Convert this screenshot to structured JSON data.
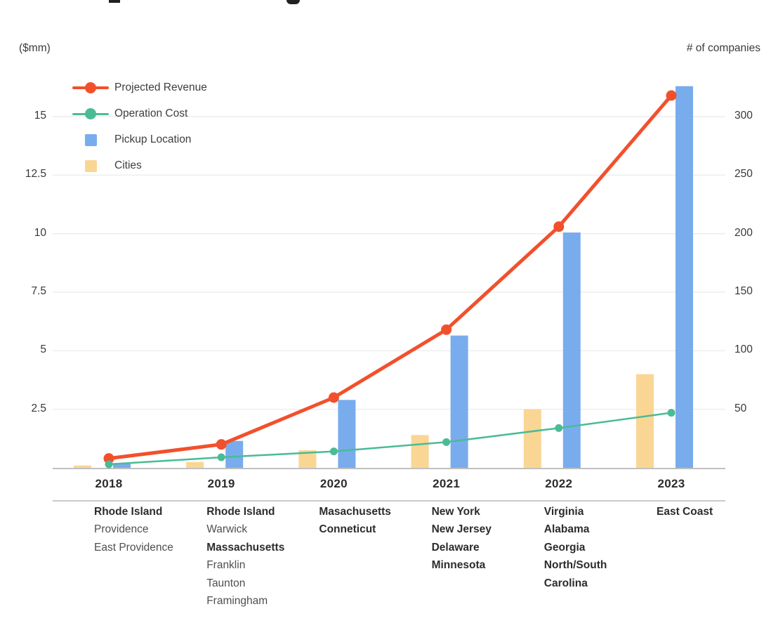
{
  "axes": {
    "left_unit_label": "($mm)",
    "right_unit_label": "# of companies",
    "left_ticks": [
      {
        "value": 2.5,
        "label": "2.5"
      },
      {
        "value": 5,
        "label": "5"
      },
      {
        "value": 7.5,
        "label": "7.5"
      },
      {
        "value": 10,
        "label": "10"
      },
      {
        "value": 12.5,
        "label": "12.5"
      },
      {
        "value": 15,
        "label": "15"
      }
    ],
    "right_ticks": [
      {
        "value": 50,
        "label": "50"
      },
      {
        "value": 100,
        "label": "100"
      },
      {
        "value": 150,
        "label": "150"
      },
      {
        "value": 200,
        "label": "200"
      },
      {
        "value": 250,
        "label": "250"
      },
      {
        "value": 300,
        "label": "300"
      }
    ]
  },
  "chart_data": {
    "type": "combo-bar-line",
    "categories": [
      "2018",
      "2019",
      "2020",
      "2021",
      "2022",
      "2023"
    ],
    "left_axis": {
      "label": "($mm)",
      "ticks": [
        2.5,
        5,
        7.5,
        10,
        12.5,
        15
      ],
      "ylim": [
        0,
        15
      ]
    },
    "right_axis": {
      "label": "# of companies",
      "ticks": [
        50,
        100,
        150,
        200,
        250,
        300
      ],
      "ylim": [
        0,
        300
      ]
    },
    "grid": "horizontal",
    "legend_position": "top-left",
    "series": [
      {
        "name": "Projected Revenue",
        "type": "line",
        "axis": "left",
        "color": "#F2502C",
        "values": [
          0.4,
          1.0,
          3.0,
          5.9,
          10.3,
          15.9
        ]
      },
      {
        "name": "Operation Cost",
        "type": "line",
        "axis": "left",
        "color": "#4ABB97",
        "values": [
          0.15,
          0.45,
          0.7,
          1.1,
          1.7,
          2.35
        ]
      },
      {
        "name": "Pickup Location",
        "type": "bar",
        "axis": "right",
        "color": "#79ACEC",
        "values": [
          4,
          23,
          58,
          113,
          201,
          326
        ]
      },
      {
        "name": "Cities",
        "type": "bar",
        "axis": "right",
        "color": "#FAD694",
        "values": [
          2,
          5,
          15,
          28,
          50,
          80
        ]
      }
    ]
  },
  "legend": {
    "items": [
      {
        "label": "Projected Revenue",
        "marker": "line-dot",
        "color": "#F2502C"
      },
      {
        "label": "Operation Cost",
        "marker": "line-dot",
        "color": "#4ABB97"
      },
      {
        "label": "Pickup Location",
        "marker": "square",
        "color": "#79ACEC"
      },
      {
        "label": "Cities",
        "marker": "square",
        "color": "#FAD694"
      }
    ]
  },
  "timeline": {
    "columns": [
      {
        "year": "2018",
        "entries": [
          {
            "text": "Rhode Island",
            "bold": true
          },
          {
            "text": "Providence",
            "bold": false
          },
          {
            "text": "East Providence",
            "bold": false
          }
        ]
      },
      {
        "year": "2019",
        "entries": [
          {
            "text": "Rhode Island",
            "bold": true
          },
          {
            "text": "Warwick",
            "bold": false
          },
          {
            "text": "Massachusetts",
            "bold": true
          },
          {
            "text": "Franklin",
            "bold": false
          },
          {
            "text": "Taunton",
            "bold": false
          },
          {
            "text": "Framingham",
            "bold": false
          }
        ]
      },
      {
        "year": "2020",
        "entries": [
          {
            "text": "Masachusetts",
            "bold": true
          },
          {
            "text": "Conneticut",
            "bold": true
          }
        ]
      },
      {
        "year": "2021",
        "entries": [
          {
            "text": "New York",
            "bold": true
          },
          {
            "text": "New Jersey",
            "bold": true
          },
          {
            "text": "Delaware",
            "bold": true
          },
          {
            "text": "Minnesota",
            "bold": true
          }
        ]
      },
      {
        "year": "2022",
        "entries": [
          {
            "text": "Virginia",
            "bold": true
          },
          {
            "text": "Alabama",
            "bold": true
          },
          {
            "text": "Georgia",
            "bold": true
          },
          {
            "text": "North/South",
            "bold": true
          },
          {
            "text": "Carolina",
            "bold": true
          }
        ]
      },
      {
        "year": "2023",
        "entries": [
          {
            "text": "East Coast",
            "bold": true
          }
        ]
      }
    ]
  },
  "colors": {
    "gridline": "#EDEDED",
    "axis_line": "#ACACAC",
    "separator": "#C9C9C9"
  }
}
